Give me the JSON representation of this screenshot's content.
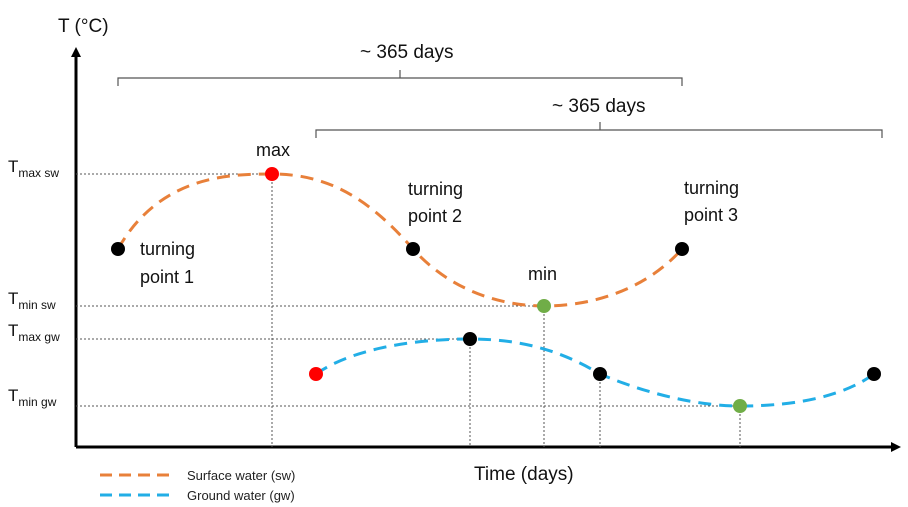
{
  "axes": {
    "y_label": "T (°C)",
    "x_label": "Time (days)"
  },
  "y_ticks": {
    "tmax_sw": {
      "main": "T",
      "sub": "max sw"
    },
    "tmin_sw": {
      "main": "T",
      "sub": "min sw"
    },
    "tmax_gw": {
      "main": "T",
      "sub": "max gw"
    },
    "tmin_gw": {
      "main": "T",
      "sub": "min gw"
    }
  },
  "brackets": {
    "top": "~ 365 days",
    "second": "~ 365 days"
  },
  "point_labels": {
    "max": "max",
    "min": "min",
    "tp1_line1": "turning",
    "tp1_line2": "point 1",
    "tp2_line1": "turning",
    "tp2_line2": "point 2",
    "tp3_line1": "turning",
    "tp3_line2": "point 3"
  },
  "legend": [
    {
      "label": "Surface water (sw)",
      "color": "#E8803A"
    },
    {
      "label": "Ground water (gw)",
      "color": "#22AEE6"
    }
  ],
  "colors": {
    "surface_water": "#E8803A",
    "ground_water": "#22AEE6",
    "max_marker": "#FF0000",
    "min_marker": "#70AD47",
    "turning_marker": "#000000"
  }
}
